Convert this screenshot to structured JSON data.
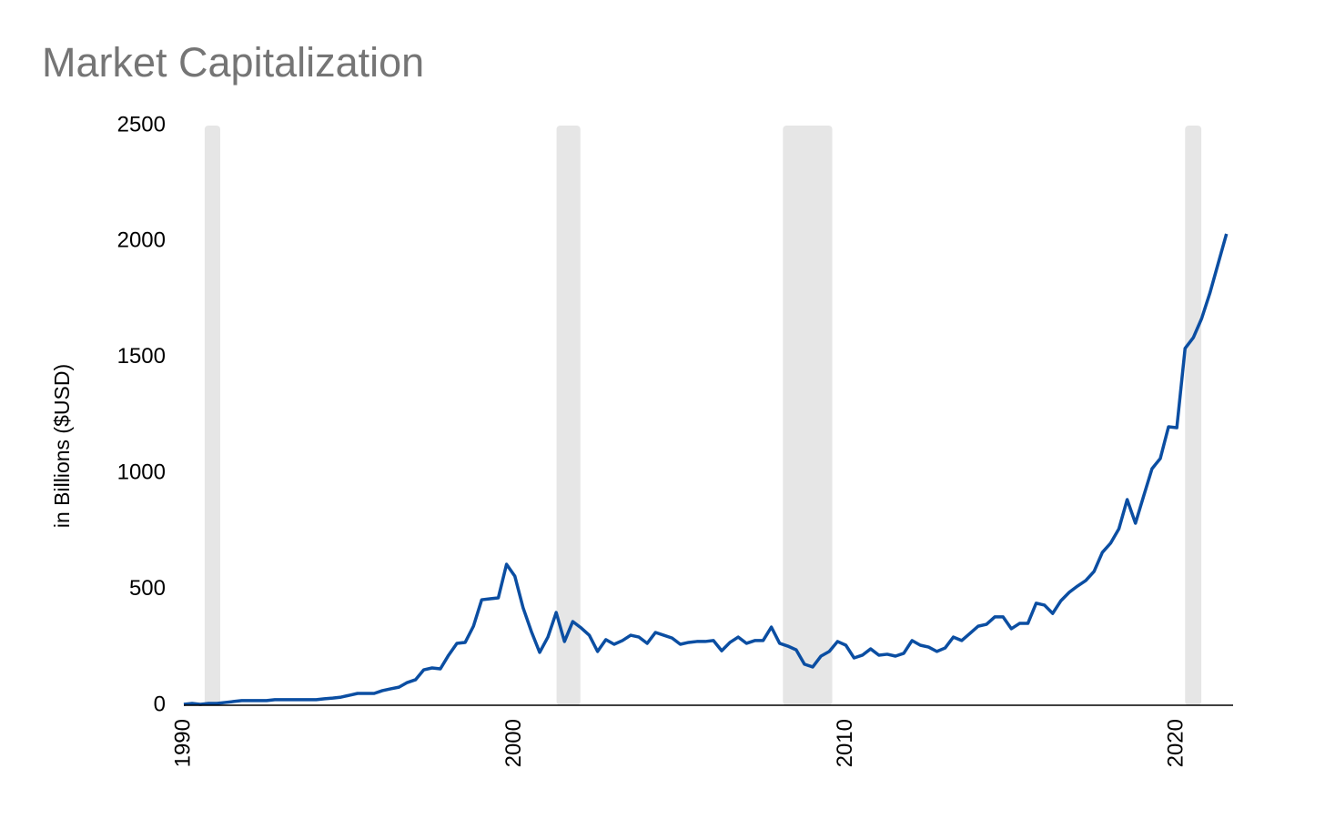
{
  "chart_data": {
    "type": "line",
    "title": "Market Capitalization",
    "y_label": "in Billions ($USD)",
    "color": "#0b4ea2",
    "band_color": "#e6e6e6",
    "shaded_ranges": [
      [
        1990.63,
        1991.1
      ],
      [
        2001.26,
        2001.98
      ],
      [
        2008.1,
        2009.59
      ],
      [
        2020.25,
        2020.74
      ]
    ],
    "xlim": [
      1990,
      2021.7
    ],
    "xticks": [
      1990,
      2000,
      2010,
      2020
    ],
    "ylim": [
      0,
      2500
    ],
    "yticks": [
      0,
      500,
      1000,
      1500,
      2000,
      2500
    ],
    "grid": false,
    "x": [
      1990,
      1990.25,
      1990.5,
      1990.75,
      1991,
      1991.25,
      1991.5,
      1991.75,
      1992,
      1992.25,
      1992.5,
      1992.75,
      1993,
      1993.25,
      1993.5,
      1993.75,
      1994,
      1994.25,
      1994.5,
      1994.75,
      1995,
      1995.25,
      1995.5,
      1995.75,
      1996,
      1996.25,
      1996.5,
      1996.75,
      1997,
      1997.25,
      1997.5,
      1997.75,
      1998,
      1998.25,
      1998.5,
      1998.75,
      1999,
      1999.25,
      1999.5,
      1999.75,
      2000,
      2000.25,
      2000.5,
      2000.75,
      2001,
      2001.25,
      2001.5,
      2001.75,
      2002,
      2002.25,
      2002.5,
      2002.75,
      2003,
      2003.25,
      2003.5,
      2003.75,
      2004,
      2004.25,
      2004.5,
      2004.75,
      2005,
      2005.25,
      2005.5,
      2005.75,
      2006,
      2006.25,
      2006.5,
      2006.75,
      2007,
      2007.25,
      2007.5,
      2007.75,
      2008,
      2008.25,
      2008.5,
      2008.75,
      2009,
      2009.25,
      2009.5,
      2009.75,
      2010,
      2010.25,
      2010.5,
      2010.75,
      2011,
      2011.25,
      2011.5,
      2011.75,
      2012,
      2012.25,
      2012.5,
      2012.75,
      2013,
      2013.25,
      2013.5,
      2013.75,
      2014,
      2014.25,
      2014.5,
      2014.75,
      2015,
      2015.25,
      2015.5,
      2015.75,
      2016,
      2016.25,
      2016.5,
      2016.75,
      2017,
      2017.25,
      2017.5,
      2017.75,
      2018,
      2018.25,
      2018.5,
      2018.75,
      2019,
      2019.25,
      2019.5,
      2019.75,
      2020,
      2020.25,
      2020.5,
      2020.75,
      2021,
      2021.5
    ],
    "values": [
      4,
      8,
      4,
      8,
      8,
      12,
      16,
      20,
      20,
      20,
      20,
      24,
      24,
      24,
      24,
      24,
      24,
      28,
      31,
      35,
      43,
      51,
      51,
      51,
      63,
      71,
      78,
      98,
      110,
      153,
      161,
      157,
      216,
      267,
      271,
      341,
      455,
      459,
      463,
      608,
      557,
      420,
      318,
      228,
      294,
      400,
      275,
      361,
      334,
      302,
      232,
      283,
      263,
      279,
      302,
      294,
      267,
      314,
      302,
      290,
      263,
      271,
      275,
      275,
      279,
      235,
      271,
      294,
      267,
      279,
      279,
      337,
      267,
      255,
      239,
      177,
      165,
      212,
      232,
      275,
      259,
      204,
      216,
      243,
      216,
      220,
      212,
      224,
      279,
      259,
      251,
      232,
      247,
      294,
      279,
      310,
      341,
      349,
      381,
      381,
      330,
      353,
      353,
      440,
      432,
      396,
      451,
      487,
      514,
      538,
      577,
      659,
      699,
      761,
      887,
      785,
      903,
      1020,
      1064,
      1201,
      1197,
      1539,
      1586,
      1668,
      1778,
      2033
    ]
  }
}
